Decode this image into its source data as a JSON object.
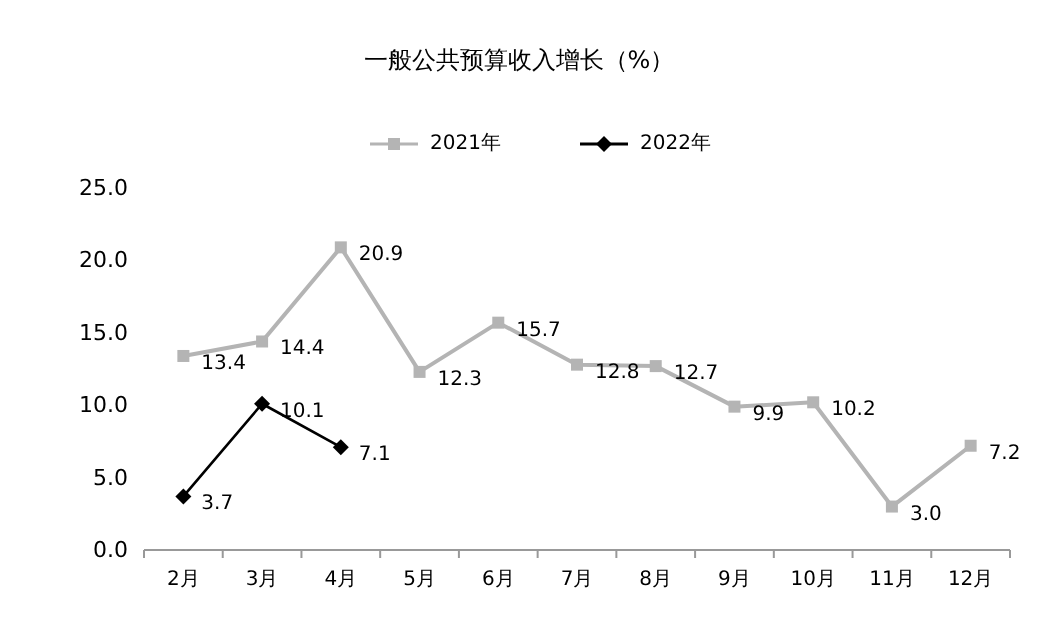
{
  "chart_data": {
    "type": "line",
    "title": "一般公共预算收入增长（%）",
    "categories": [
      "2月",
      "3月",
      "4月",
      "5月",
      "6月",
      "7月",
      "8月",
      "9月",
      "10月",
      "11月",
      "12月"
    ],
    "series": [
      {
        "name": "2021年",
        "color": "#b4b4b4",
        "marker": "square",
        "values": [
          13.4,
          14.4,
          20.9,
          12.3,
          15.7,
          12.8,
          12.7,
          9.9,
          10.2,
          3.0,
          7.2
        ],
        "value_labels": [
          "13.4",
          "14.4",
          "20.9",
          "12.3",
          "15.7",
          "12.8",
          "12.7",
          "9.9",
          "10.2",
          "3.0",
          "7.2"
        ]
      },
      {
        "name": "2022年",
        "color": "#000000",
        "marker": "diamond",
        "values": [
          3.7,
          10.1,
          7.1,
          null,
          null,
          null,
          null,
          null,
          null,
          null,
          null
        ],
        "value_labels": [
          "3.7",
          "10.1",
          "7.1",
          null,
          null,
          null,
          null,
          null,
          null,
          null,
          null
        ]
      }
    ],
    "ylim": [
      0,
      25
    ],
    "yticks": [
      {
        "value": 0,
        "label": "0.0"
      },
      {
        "value": 5,
        "label": "5.0"
      },
      {
        "value": 10,
        "label": "10.0"
      },
      {
        "value": 15,
        "label": "15.0"
      },
      {
        "value": 20,
        "label": "20.0"
      },
      {
        "value": 25,
        "label": "25.0"
      }
    ],
    "legend": "top"
  }
}
